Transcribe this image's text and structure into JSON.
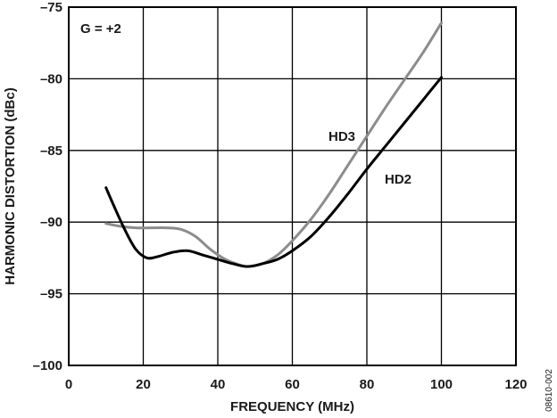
{
  "chart_data": {
    "type": "line",
    "title": "",
    "xlabel": "FREQUENCY (MHz)",
    "ylabel": "HARMONIC DISTORTION (dBc)",
    "xlim": [
      0,
      120
    ],
    "ylim": [
      -100,
      -75
    ],
    "x_ticks": [
      0,
      20,
      40,
      60,
      80,
      100,
      120
    ],
    "y_ticks": [
      -75,
      -80,
      -85,
      -90,
      -95,
      -100
    ],
    "x_tick_labels": [
      "0",
      "20",
      "40",
      "60",
      "80",
      "100",
      "120"
    ],
    "y_tick_labels": [
      "–75",
      "–80",
      "–85",
      "–90",
      "–95",
      "–100"
    ],
    "grid": true,
    "annotations": {
      "gain": "G = +2",
      "hd3": "HD3",
      "hd2": "HD2"
    },
    "figure_id": "08610-002",
    "series": [
      {
        "name": "HD3",
        "color": "#8c8c8c",
        "x": [
          10,
          14,
          18,
          22,
          26,
          30,
          34,
          38,
          42,
          46,
          48,
          52,
          56,
          60,
          65,
          70,
          75,
          80,
          85,
          90,
          95,
          100
        ],
        "y": [
          -90.1,
          -90.3,
          -90.4,
          -90.4,
          -90.4,
          -90.5,
          -91.0,
          -91.9,
          -92.6,
          -93.0,
          -93.1,
          -92.9,
          -92.3,
          -91.3,
          -89.8,
          -88.0,
          -86.0,
          -84.0,
          -82.0,
          -80.1,
          -78.2,
          -76.1
        ]
      },
      {
        "name": "HD2",
        "color": "#000000",
        "x": [
          10,
          12,
          15,
          18,
          21,
          24,
          28,
          32,
          36,
          40,
          44,
          48,
          52,
          56,
          60,
          65,
          70,
          75,
          80,
          85,
          90,
          95,
          100
        ],
        "y": [
          -87.6,
          -88.8,
          -90.5,
          -91.9,
          -92.5,
          -92.4,
          -92.1,
          -92.0,
          -92.3,
          -92.6,
          -92.9,
          -93.1,
          -92.9,
          -92.6,
          -92.0,
          -91.0,
          -89.6,
          -88.0,
          -86.3,
          -84.7,
          -83.1,
          -81.5,
          -79.9
        ]
      }
    ]
  }
}
